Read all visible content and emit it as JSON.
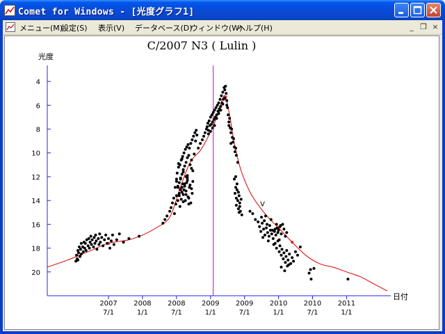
{
  "window": {
    "title": "Comet for Windows - [光度グラフ1]",
    "caption_buttons": {
      "minimize": "minimize-icon",
      "maximize": "maximize-icon",
      "close": "close-icon"
    }
  },
  "menubar": {
    "items": [
      {
        "label": "メニュー(M)"
      },
      {
        "label": "設定(S)"
      },
      {
        "label": "表示(V)"
      },
      {
        "label": "データベース(D)"
      },
      {
        "label": "ウィンドウ(W)"
      },
      {
        "label": "ヘルプ(H)"
      }
    ],
    "mdi_buttons": [
      "_",
      "❐",
      "×"
    ]
  },
  "colors": {
    "title_bar": "#0a49d6",
    "curve": "#dd0000",
    "perihelion_line": "#cc00cc",
    "axes": "#2020ff",
    "points": "#000000"
  },
  "chart_data": {
    "type": "scatter",
    "title": "C/2007 N3 ( Lulin )",
    "ylabel": "光度",
    "xlabel": "日付",
    "y_inverted": true,
    "ylim": [
      3,
      22
    ],
    "xlim": [
      2006.6,
      2011.65
    ],
    "y_ticks": [
      4,
      6,
      8,
      10,
      12,
      14,
      16,
      18,
      20
    ],
    "x_ticks": [
      {
        "x": 2007.5,
        "line1": "2007",
        "line2": "7/1"
      },
      {
        "x": 2008.0,
        "line1": "2008",
        "line2": "1/1"
      },
      {
        "x": 2008.5,
        "line1": "2008",
        "line2": "7/1"
      },
      {
        "x": 2009.0,
        "line1": "2009",
        "line2": "1/1"
      },
      {
        "x": 2009.5,
        "line1": "2009",
        "line2": "7/1"
      },
      {
        "x": 2010.0,
        "line1": "2010",
        "line2": "1/1"
      },
      {
        "x": 2010.5,
        "line1": "2010",
        "line2": "7/1"
      },
      {
        "x": 2011.0,
        "line1": "2011",
        "line2": "1/1"
      }
    ],
    "perihelion_x": 2009.04,
    "annotation": {
      "x": 2009.73,
      "y": 14.5,
      "text": "V"
    },
    "curve": {
      "x": [
        2006.6,
        2006.9,
        2007.2,
        2007.5,
        2007.8,
        2008.0,
        2008.2,
        2008.4,
        2008.55,
        2008.7,
        2008.85,
        2008.95,
        2009.05,
        2009.12,
        2009.18,
        2009.22,
        2009.28,
        2009.35,
        2009.45,
        2009.6,
        2009.8,
        2010.0,
        2010.2,
        2010.4,
        2010.6,
        2010.8,
        2011.0,
        2011.2,
        2011.4,
        2011.6
      ],
      "y": [
        19.6,
        19.0,
        18.3,
        17.6,
        17.3,
        16.9,
        16.3,
        15.4,
        13.0,
        10.8,
        9.8,
        8.8,
        7.6,
        6.5,
        5.4,
        5.3,
        6.8,
        9.2,
        11.5,
        13.5,
        15.1,
        16.3,
        17.5,
        18.6,
        19.3,
        19.6,
        20.0,
        20.4,
        21.0,
        21.6
      ]
    },
    "series": [
      {
        "x": [
          2007.02,
          2007.03,
          2007.04,
          2007.05,
          2007.05,
          2007.06,
          2007.07,
          2007.08,
          2007.09,
          2007.1,
          2007.1,
          2007.12,
          2007.13,
          2007.14,
          2007.15,
          2007.16,
          2007.17,
          2007.18,
          2007.2,
          2007.21,
          2007.22,
          2007.23,
          2007.24,
          2007.25,
          2007.26,
          2007.28,
          2007.29,
          2007.3,
          2007.31,
          2007.32,
          2007.33,
          2007.35,
          2007.36,
          2007.37,
          2007.38,
          2007.4,
          2007.42,
          2007.44,
          2007.46,
          2007.48,
          2007.5,
          2007.52,
          2007.54,
          2007.56,
          2007.58,
          2007.62,
          2007.66,
          2007.72,
          2007.8,
          2007.95
        ],
        "y": [
          19.1,
          18.6,
          18.9,
          18.2,
          19.0,
          18.4,
          17.9,
          18.7,
          18.1,
          17.6,
          18.5,
          17.9,
          18.3,
          17.5,
          18.0,
          17.6,
          18.2,
          17.3,
          17.8,
          17.2,
          18.0,
          17.5,
          17.0,
          17.7,
          17.3,
          17.9,
          17.1,
          17.6,
          16.9,
          17.4,
          18.1,
          17.2,
          17.7,
          16.8,
          17.5,
          17.1,
          17.8,
          17.3,
          16.9,
          17.6,
          17.2,
          18.0,
          17.4,
          16.9,
          17.7,
          17.3,
          16.8,
          17.5,
          17.2,
          17.0
        ]
      },
      {
        "x": [
          2008.3,
          2008.33,
          2008.36,
          2008.4,
          2008.42,
          2008.44,
          2008.46,
          2008.47,
          2008.48,
          2008.49,
          2008.5,
          2008.5,
          2008.51,
          2008.52,
          2008.52,
          2008.53,
          2008.54,
          2008.54,
          2008.55,
          2008.56,
          2008.56,
          2008.57,
          2008.58,
          2008.58,
          2008.59,
          2008.6,
          2008.6,
          2008.61,
          2008.62,
          2008.62,
          2008.63,
          2008.64,
          2008.64,
          2008.65,
          2008.66,
          2008.66,
          2008.67,
          2008.68,
          2008.68,
          2008.69,
          2008.7,
          2008.7,
          2008.71,
          2008.72,
          2008.72,
          2008.73,
          2008.74,
          2008.74,
          2008.75,
          2008.76,
          2008.77,
          2008.78,
          2008.79,
          2008.8,
          2008.5,
          2008.52,
          2008.54,
          2008.56,
          2008.58,
          2008.6,
          2008.62,
          2008.64,
          2008.66,
          2008.68,
          2008.55,
          2008.57,
          2008.59,
          2008.61,
          2008.63,
          2008.65,
          2008.67,
          2008.69,
          2008.71,
          2008.73,
          2008.53,
          2008.6,
          2008.66,
          2008.72,
          2008.58,
          2008.64
        ],
        "y": [
          15.9,
          15.6,
          15.3,
          14.9,
          14.6,
          14.2,
          13.8,
          15.1,
          12.9,
          14.3,
          12.2,
          13.6,
          11.7,
          12.8,
          14.0,
          11.2,
          12.5,
          13.4,
          11.0,
          12.1,
          13.1,
          10.6,
          11.8,
          12.9,
          10.3,
          11.4,
          13.5,
          10.0,
          11.1,
          12.6,
          9.7,
          10.8,
          13.2,
          9.5,
          10.4,
          12.3,
          9.3,
          10.2,
          13.8,
          9.6,
          11.0,
          12.7,
          9.2,
          10.6,
          13.0,
          8.9,
          11.5,
          12.4,
          8.6,
          10.1,
          8.3,
          9.0,
          8.1,
          8.5,
          12.4,
          12.9,
          13.6,
          12.2,
          13.3,
          14.1,
          12.8,
          13.5,
          12.1,
          14.3,
          14.5,
          13.9,
          12.6,
          13.1,
          14.0,
          12.5,
          13.7,
          12.9,
          14.2,
          13.4,
          10.9,
          11.6,
          11.9,
          11.3,
          10.5,
          12.0
        ]
      },
      {
        "x": [
          2008.82,
          2008.85,
          2008.88,
          2008.9,
          2008.92,
          2008.94,
          2008.95,
          2008.96,
          2008.97,
          2008.98,
          2008.99,
          2009.0,
          2009.01,
          2009.02,
          2009.03,
          2009.04,
          2009.05,
          2009.06,
          2009.07,
          2009.08,
          2009.09,
          2009.1,
          2009.11,
          2009.12,
          2009.13,
          2009.14,
          2009.15,
          2009.16,
          2009.17,
          2009.18,
          2009.19,
          2009.2,
          2009.21,
          2009.22,
          2009.23,
          2009.24,
          2009.25,
          2009.26,
          2009.27,
          2009.28,
          2009.29,
          2009.3,
          2009.31,
          2009.32,
          2009.33,
          2009.34,
          2009.35,
          2009.36,
          2009.37,
          2009.38,
          2009.4,
          2008.97,
          2009.0,
          2009.03,
          2009.06,
          2009.09,
          2009.12,
          2009.15,
          2009.18,
          2009.21,
          2009.24,
          2009.27,
          2009.3
        ],
        "y": [
          9.6,
          9.2,
          8.9,
          8.6,
          8.3,
          8.0,
          7.8,
          7.5,
          8.1,
          7.3,
          7.7,
          7.0,
          7.6,
          6.8,
          7.4,
          6.6,
          7.2,
          6.4,
          7.0,
          6.2,
          6.8,
          6.0,
          6.5,
          5.8,
          6.3,
          5.5,
          6.1,
          5.2,
          5.8,
          4.9,
          5.5,
          4.5,
          4.7,
          4.4,
          5.0,
          5.6,
          6.2,
          6.8,
          7.4,
          7.1,
          7.9,
          8.3,
          8.0,
          8.7,
          9.1,
          8.8,
          9.5,
          9.9,
          9.6,
          10.2,
          10.8,
          8.4,
          8.2,
          7.9,
          7.7,
          7.1,
          6.7,
          6.4,
          5.9,
          5.4,
          6.0,
          7.7,
          9.2
        ]
      },
      {
        "x": [
          2009.35,
          2009.36,
          2009.37,
          2009.38,
          2009.38,
          2009.39,
          2009.4,
          2009.41,
          2009.42,
          2009.42,
          2009.43,
          2009.44,
          2009.45,
          2009.46,
          2009.39,
          2009.41,
          2009.43,
          2009.37
        ],
        "y": [
          12.2,
          13.4,
          12.9,
          13.8,
          14.4,
          13.1,
          14.0,
          14.7,
          13.6,
          15.0,
          14.2,
          14.9,
          13.9,
          15.2,
          12.6,
          13.3,
          14.5,
          12.0
        ]
      },
      {
        "x": [
          2009.58,
          2009.62,
          2009.66,
          2009.7,
          2009.72,
          2009.74,
          2009.76,
          2009.78,
          2009.8,
          2009.82,
          2009.84,
          2009.86,
          2009.88,
          2009.9,
          2009.92,
          2009.94,
          2009.96,
          2009.98,
          2010.0,
          2010.02,
          2010.04,
          2010.06,
          2010.08,
          2010.1,
          2010.12,
          2009.75,
          2009.79,
          2009.83,
          2009.87,
          2009.91,
          2009.95,
          2009.99,
          2010.03,
          2009.77,
          2009.85,
          2009.93,
          2010.01,
          2009.81,
          2009.89,
          2009.97
        ],
        "y": [
          14.9,
          15.1,
          15.6,
          15.8,
          16.2,
          16.6,
          15.9,
          16.4,
          16.9,
          16.3,
          16.7,
          17.0,
          16.5,
          16.8,
          17.2,
          16.6,
          16.9,
          16.3,
          16.5,
          16.2,
          16.8,
          16.0,
          16.4,
          17.0,
          16.7,
          15.4,
          15.7,
          16.0,
          16.1,
          16.5,
          16.4,
          16.7,
          16.1,
          17.1,
          17.4,
          17.7,
          17.3,
          15.3,
          15.6,
          16.0
        ]
      },
      {
        "x": [
          2009.95,
          2009.97,
          2009.99,
          2010.01,
          2010.02,
          2010.04,
          2010.05,
          2010.07,
          2010.08,
          2010.1,
          2010.11,
          2010.13,
          2010.14,
          2010.16,
          2010.18,
          2010.2,
          2010.22,
          2010.25,
          2010.28,
          2010.32,
          2010.04,
          2010.09,
          2010.12,
          2010.15
        ],
        "y": [
          17.6,
          18.0,
          17.4,
          18.3,
          17.8,
          18.6,
          18.1,
          18.9,
          18.4,
          19.2,
          18.7,
          19.5,
          19.0,
          18.5,
          19.3,
          18.8,
          19.1,
          18.3,
          18.6,
          17.9,
          19.6,
          19.9,
          18.2,
          19.4
        ]
      },
      {
        "x": [
          2010.45,
          2010.47,
          2010.48,
          2010.52,
          2011.02
        ],
        "y": [
          20.1,
          19.8,
          20.6,
          19.7,
          20.6
        ]
      }
    ]
  }
}
